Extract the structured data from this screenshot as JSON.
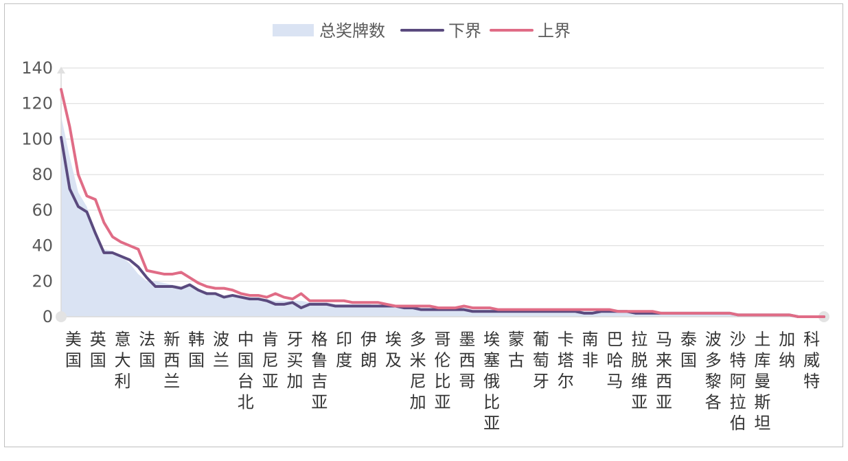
{
  "chart_data": {
    "type": "area",
    "title": "",
    "xlabel": "",
    "ylabel": "",
    "ylim": [
      0,
      140
    ],
    "yticks": [
      0,
      20,
      40,
      60,
      80,
      100,
      120,
      140
    ],
    "grid": true,
    "legend_position": "top",
    "categories": [
      "美国",
      "英国",
      "意大利",
      "法国",
      "新西兰",
      "韩国",
      "波兰",
      "中国台北",
      "肯尼亚",
      "牙买加",
      "格鲁吉亚",
      "印度",
      "伊朗",
      "埃及",
      "多米尼加",
      "哥伦比亚",
      "墨西哥",
      "埃塞俄比亚",
      "蒙古",
      "葡萄牙",
      "卡塔尔",
      "南非",
      "巴哈马",
      "拉脱维亚",
      "马来西亚",
      "泰国",
      "波多黎各",
      "沙特阿拉伯",
      "土库曼斯坦",
      "加纳",
      "科威特"
    ],
    "x": [
      1,
      2,
      3,
      4,
      5,
      6,
      7,
      8,
      9,
      10,
      11,
      12,
      13,
      14,
      15,
      16,
      17,
      18,
      19,
      20,
      21,
      22,
      23,
      24,
      25,
      26,
      27,
      28,
      29,
      30,
      31,
      32,
      33,
      34,
      35,
      36,
      37,
      38,
      39,
      40,
      41,
      42,
      43,
      44,
      45,
      46,
      47,
      48,
      49,
      50,
      51,
      52,
      53,
      54,
      55,
      56,
      57,
      58,
      59,
      60,
      61,
      62,
      63,
      64,
      65,
      66,
      67,
      68,
      69,
      70,
      71,
      72,
      73,
      74,
      75,
      76,
      77,
      78,
      79,
      80,
      81,
      82,
      83,
      84,
      85,
      86,
      87,
      88,
      89,
      90
    ],
    "series": [
      {
        "name": "总奖牌数",
        "color": "#dae3f3",
        "values": [
          113,
          90,
          70,
          62,
          45,
          38,
          37,
          34,
          30,
          24,
          20,
          20,
          19,
          18,
          17,
          17,
          15,
          14,
          13,
          12,
          12,
          11,
          11,
          10,
          10,
          9,
          9,
          9,
          9,
          8,
          8,
          8,
          7,
          7,
          7,
          7,
          7,
          6,
          6,
          6,
          6,
          6,
          5,
          5,
          5,
          5,
          5,
          5,
          4,
          4,
          4,
          4,
          4,
          4,
          4,
          4,
          4,
          4,
          4,
          4,
          4,
          3,
          3,
          3,
          3,
          3,
          3,
          3,
          3,
          2,
          2,
          2,
          2,
          2,
          2,
          2,
          2,
          2,
          2,
          1,
          1,
          1,
          1,
          1,
          1,
          1,
          0,
          0,
          0,
          0
        ]
      },
      {
        "name": "下界",
        "color": "#5a4a7e",
        "values": [
          101,
          72,
          62,
          59,
          47,
          36,
          36,
          34,
          32,
          28,
          22,
          17,
          17,
          17,
          16,
          18,
          15,
          13,
          13,
          11,
          12,
          11,
          10,
          10,
          9,
          7,
          7,
          8,
          5,
          7,
          7,
          7,
          6,
          6,
          6,
          6,
          6,
          6,
          6,
          6,
          5,
          5,
          4,
          4,
          4,
          4,
          4,
          4,
          3,
          3,
          3,
          3,
          3,
          3,
          3,
          3,
          3,
          3,
          3,
          3,
          3,
          2,
          2,
          3,
          3,
          3,
          3,
          2,
          2,
          2,
          2,
          2,
          2,
          2,
          2,
          2,
          2,
          2,
          2,
          1,
          1,
          1,
          1,
          1,
          1,
          1,
          0,
          0,
          0,
          0
        ]
      },
      {
        "name": "上界",
        "color": "#e06c86",
        "values": [
          128,
          107,
          80,
          68,
          66,
          53,
          45,
          42,
          40,
          38,
          26,
          25,
          24,
          24,
          25,
          22,
          19,
          17,
          16,
          16,
          15,
          13,
          12,
          12,
          11,
          13,
          11,
          10,
          13,
          9,
          9,
          9,
          9,
          9,
          8,
          8,
          8,
          8,
          7,
          6,
          6,
          6,
          6,
          6,
          5,
          5,
          5,
          6,
          5,
          5,
          5,
          4,
          4,
          4,
          4,
          4,
          4,
          4,
          4,
          4,
          4,
          4,
          4,
          4,
          4,
          3,
          3,
          3,
          3,
          3,
          2,
          2,
          2,
          2,
          2,
          2,
          2,
          2,
          2,
          1,
          1,
          1,
          1,
          1,
          1,
          1,
          0,
          0,
          0,
          0
        ]
      }
    ]
  }
}
